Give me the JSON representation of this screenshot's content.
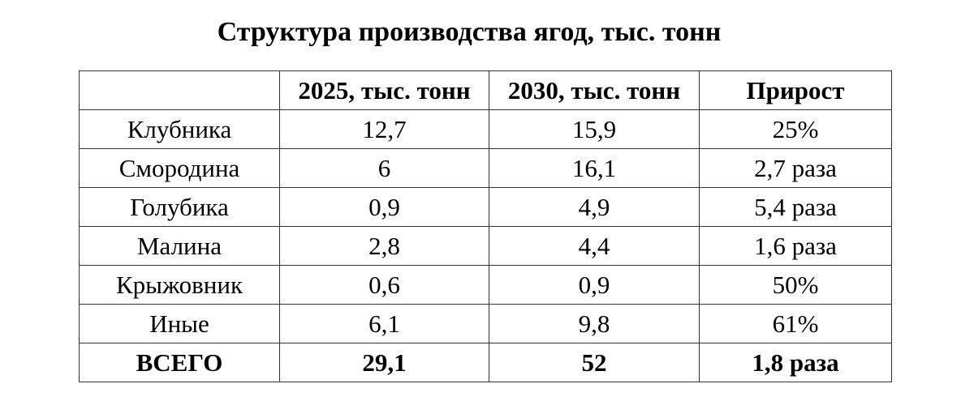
{
  "title": "Структура производства ягод, тыс. тонн",
  "table": {
    "headers": [
      "",
      "2025, тыс. тонн",
      "2030, тыс. тонн",
      "Прирост"
    ],
    "rows": [
      [
        "Клубника",
        "12,7",
        "15,9",
        "25%"
      ],
      [
        "Смородина",
        "6",
        "16,1",
        "2,7 раза"
      ],
      [
        "Голубика",
        "0,9",
        "4,9",
        "5,4 раза"
      ],
      [
        "Малина",
        "2,8",
        "4,4",
        "1,6 раза"
      ],
      [
        "Крыжовник",
        "0,6",
        "0,9",
        "50%"
      ],
      [
        "Иные",
        "6,1",
        "9,8",
        "61%"
      ]
    ],
    "total": [
      "ВСЕГО",
      "29,1",
      "52",
      "1,8 раза"
    ]
  }
}
